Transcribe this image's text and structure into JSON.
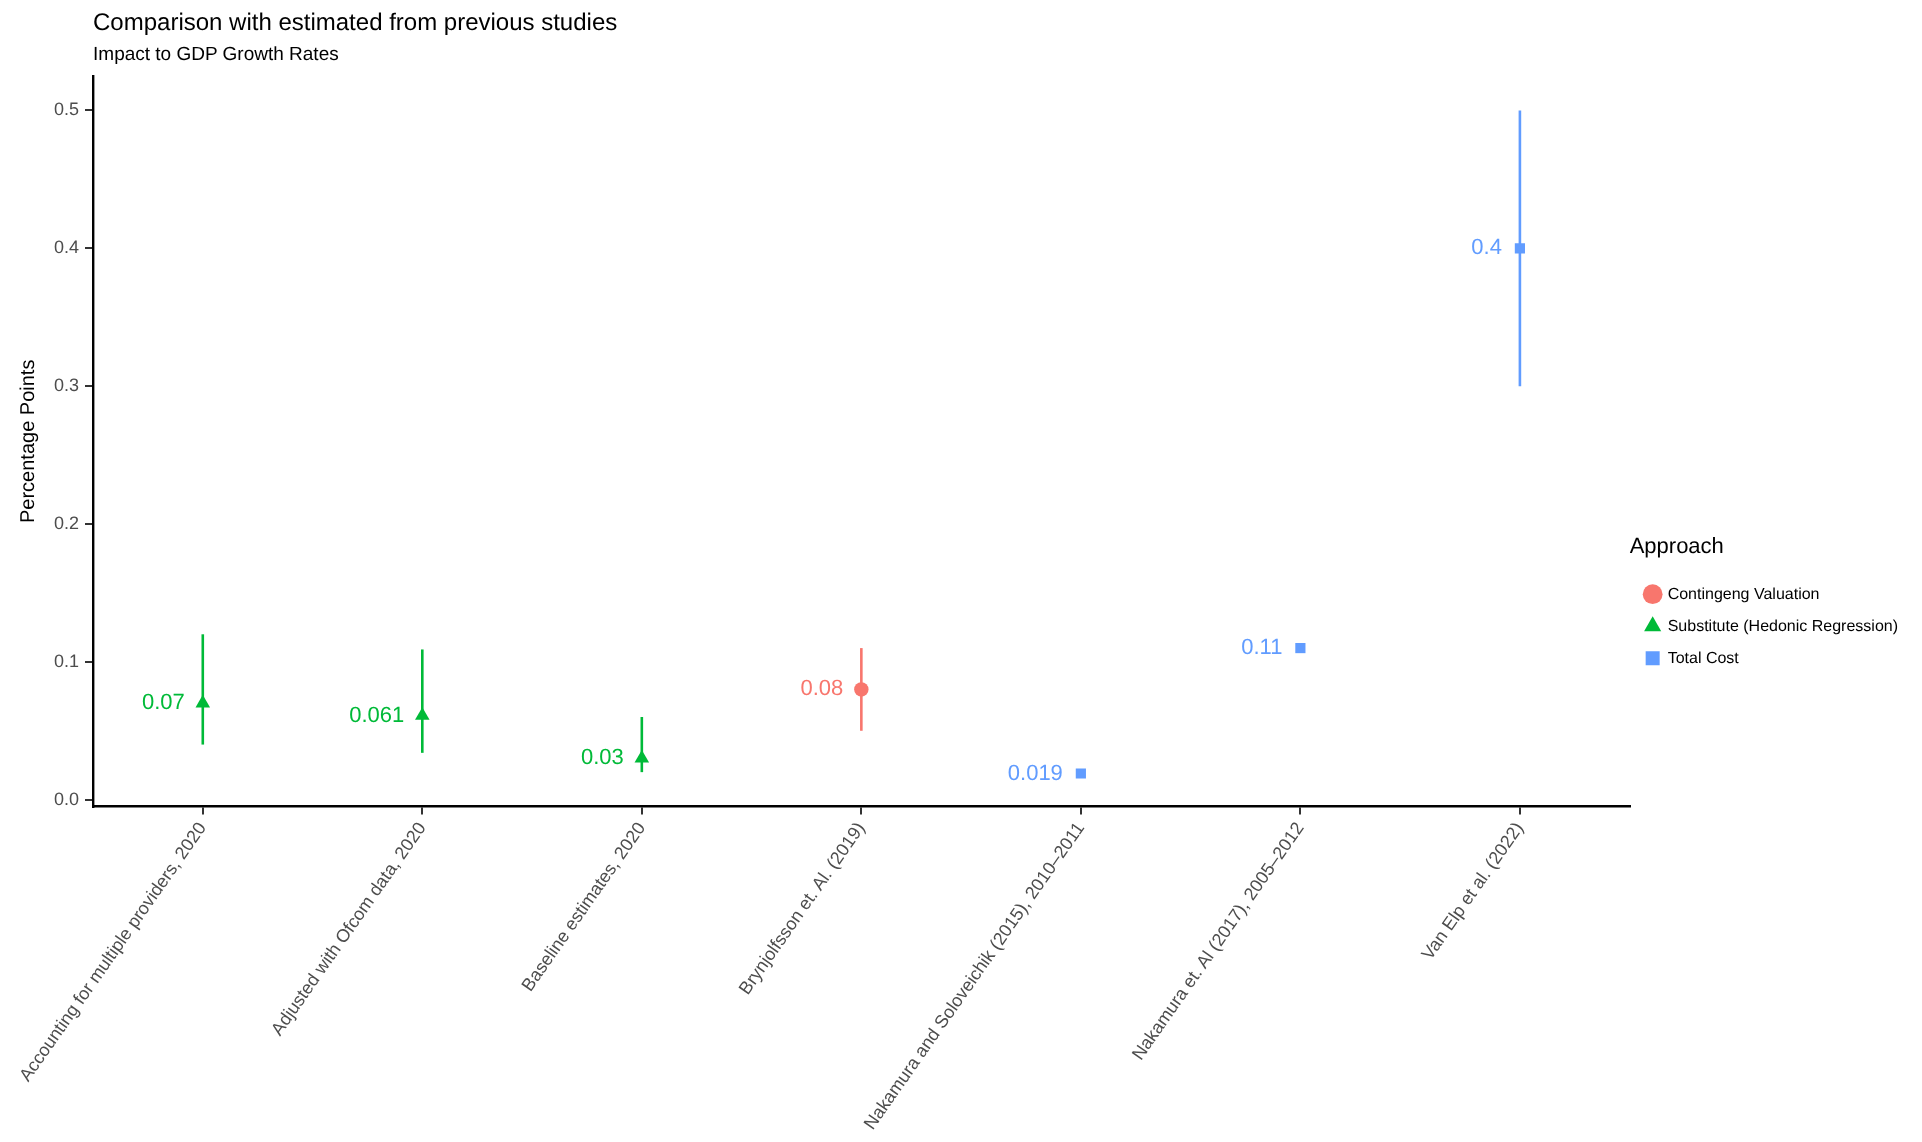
{
  "chart_data": {
    "type": "scatter",
    "title": "Comparison with estimated from previous studies",
    "subtitle": "Impact to GDP Growth Rates",
    "ylabel": "Percentage Points",
    "legend_title": "Approach",
    "legend": "right",
    "data_labels": true,
    "categories": [
      "Accounting for multiple providers, 2020",
      "Adjusted with Ofcom data, 2020",
      "Baseline estimates, 2020",
      "Brynjolfsson et. Al. (2019)",
      "Nakamura and Soloveichik (2015), 2010–2011",
      "Nakamura et. Al (2017), 2005–2012",
      "Van Elp et al. (2022)"
    ],
    "series": [
      {
        "name": "Contingeng Valuation",
        "color": "#f8766d",
        "marker": "circle",
        "values": [
          null,
          null,
          null,
          0.08,
          null,
          null,
          null
        ],
        "errors": [
          null,
          null,
          null,
          [
            0.05,
            0.11
          ],
          null,
          null,
          null
        ]
      },
      {
        "name": "Substitute (Hedonic Regression)",
        "color": "#00ba38",
        "marker": "triangle",
        "values": [
          0.07,
          0.061,
          0.03,
          null,
          null,
          null,
          null
        ],
        "errors": [
          [
            0.04,
            0.12
          ],
          [
            0.034,
            0.109
          ],
          [
            0.02,
            0.06
          ],
          null,
          null,
          null,
          null
        ]
      },
      {
        "name": "Total Cost",
        "color": "#619cff",
        "marker": "square",
        "values": [
          null,
          null,
          null,
          null,
          0.019,
          0.11,
          0.4
        ],
        "errors": [
          null,
          null,
          null,
          null,
          null,
          null,
          [
            0.3,
            0.5
          ]
        ]
      }
    ],
    "ylim": [
      -0.005,
      0.525
    ],
    "yticks": [
      {
        "value": 0,
        "label": "0.0"
      },
      0.1,
      0.2,
      0.3,
      0.4,
      0.5
    ]
  }
}
